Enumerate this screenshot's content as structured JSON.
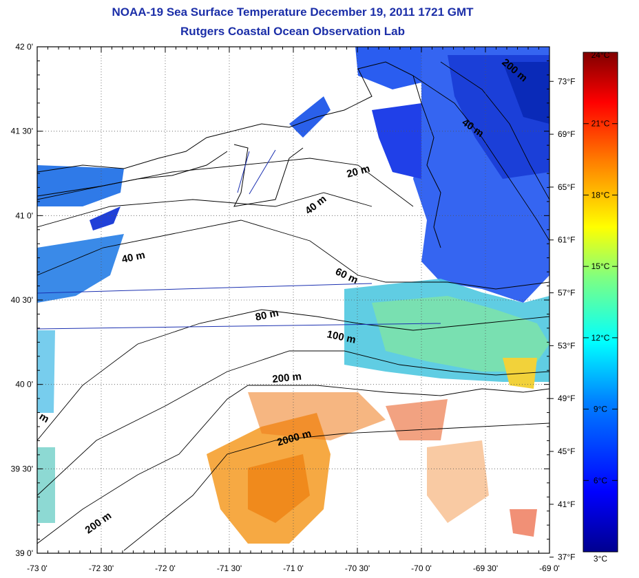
{
  "title": "NOAA-19 Sea Surface Temperature December 19, 2011 1721 GMT",
  "subtitle": "Rutgers Coastal Ocean Observation Lab",
  "lon_labels": [
    "-73 0'",
    "-72 30'",
    "-72 0'",
    "-71 30'",
    "-71 0'",
    "-70 30'",
    "-70 0'",
    "-69 30'",
    "-69 0'"
  ],
  "lat_labels": [
    "42 0'",
    "41 30'",
    "41 0'",
    "40 30'",
    "40 0'",
    "39 30'",
    "39 0'"
  ],
  "fahrenheit_labels": [
    "73°F",
    "69°F",
    "65°F",
    "61°F",
    "57°F",
    "53°F",
    "49°F",
    "45°F",
    "41°F",
    "37°F"
  ],
  "colorbar": {
    "labels": [
      "24°C",
      "21°C",
      "18°C",
      "15°C",
      "12°C",
      "9°C",
      "6°C",
      "3°C"
    ],
    "range_c": [
      3,
      24
    ],
    "colors": [
      "#00008f",
      "#0000ff",
      "#0080ff",
      "#00ffff",
      "#80ff80",
      "#ffff00",
      "#ff8000",
      "#ff0000",
      "#800000"
    ]
  },
  "depth_labels": [
    "200 m",
    "40 m",
    "20 m",
    "40 m",
    "40 m",
    "60 m",
    "80 m",
    "100 m",
    "200 m",
    "2000 m",
    "200 m",
    "m"
  ],
  "colors": {
    "title": "#1b2ea8",
    "cold": "#1a3fe0",
    "cyan": "#3fb8e8",
    "warm": "#f08a1c",
    "hot": "#e8461a"
  }
}
